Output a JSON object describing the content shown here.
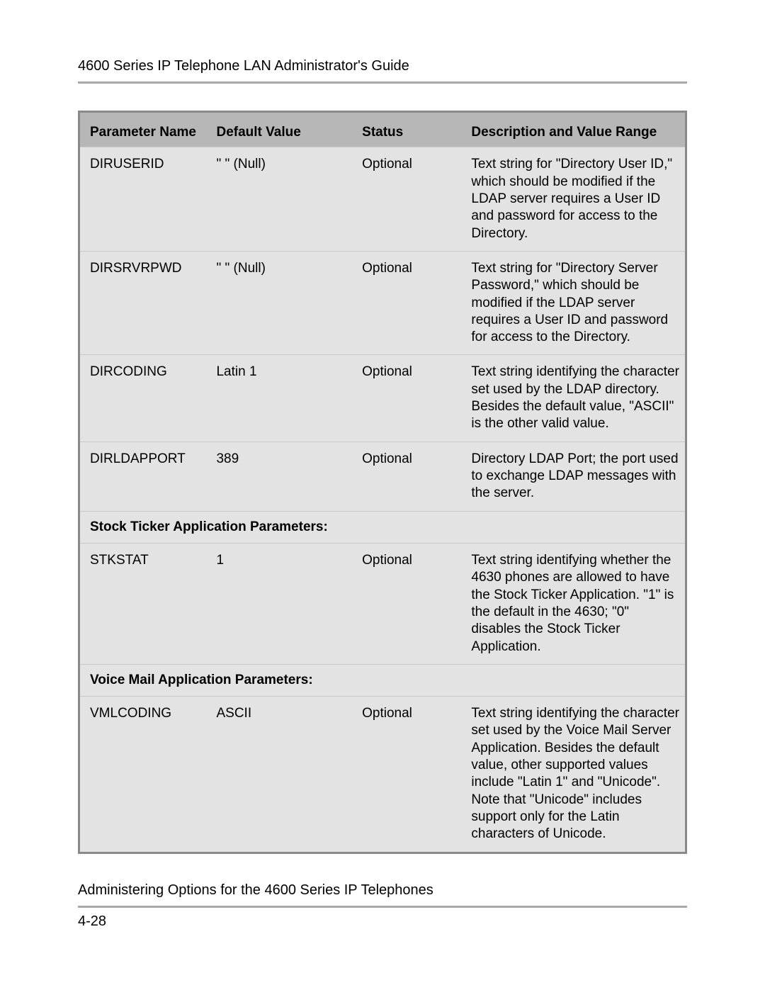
{
  "styling": {
    "header_bg": "#b7b7b7",
    "row_bg": "#e3e3e3",
    "border_color": "#8a8a8a",
    "rowline_color": "#c9c9c9",
    "text_color": "#000000",
    "font_family": "Arial, Helvetica, sans-serif",
    "body_fontsize_pt": 14,
    "rule_color": "#a9a9a9"
  },
  "header": {
    "doc_title": "4600 Series IP Telephone LAN Administrator's Guide"
  },
  "table": {
    "columns": {
      "param": "Parameter Name",
      "default": "Default Value",
      "status": "Status",
      "desc": "Description and Value Range"
    },
    "rows": [
      {
        "type": "data",
        "param": "DIRUSERID",
        "default": "\" \" (Null)",
        "status": "Optional",
        "desc": "Text string for \"Directory User ID,\" which should be modified if the LDAP server requires a User ID and password for access to the Directory."
      },
      {
        "type": "data",
        "param": "DIRSRVRPWD",
        "default": "\" \" (Null)",
        "status": "Optional",
        "desc": "Text string for \"Directory Server Password,\" which should be modified if the LDAP server requires a User ID and password for access to the Directory."
      },
      {
        "type": "data",
        "param": "DIRCODING",
        "default": "Latin 1",
        "status": "Optional",
        "desc": "Text string identifying the character set used by the LDAP directory. Besides the default value, \"ASCII\" is the other valid value."
      },
      {
        "type": "data",
        "param": "DIRLDAPPORT",
        "default": "389",
        "status": "Optional",
        "desc": "Directory LDAP Port; the port used to exchange LDAP messages with the server."
      },
      {
        "type": "section",
        "title": "Stock Ticker Application Parameters:"
      },
      {
        "type": "data",
        "param": "STKSTAT",
        "default": "1",
        "status": "Optional",
        "desc": "Text string identifying whether the 4630 phones are allowed to have the Stock Ticker Application. \"1\" is the default in the 4630; \"0\" disables the Stock Ticker Application."
      },
      {
        "type": "section",
        "title": "Voice Mail Application Parameters:"
      },
      {
        "type": "data",
        "param": "VMLCODING",
        "default": "ASCII",
        "status": "Optional",
        "desc": "Text string identifying the character set used by the Voice Mail Server Application. Besides the default value, other supported values include \"Latin 1\" and \"Unicode\". Note that \"Unicode\" includes support only for the Latin characters of Unicode."
      }
    ]
  },
  "footer": {
    "section_title": "Administering Options for the 4600 Series IP Telephones",
    "page_number": "4-28"
  }
}
